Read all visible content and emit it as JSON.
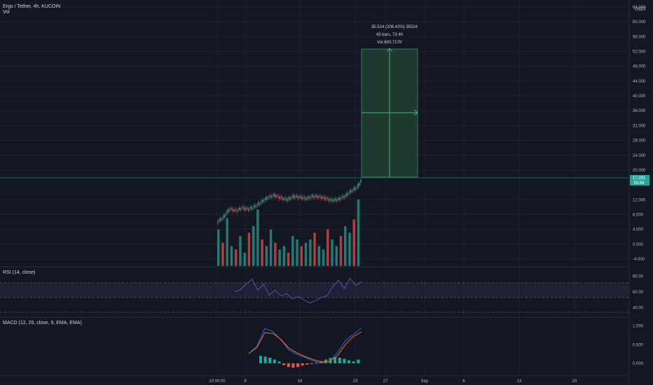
{
  "header": {
    "symbol_line": "Ergo / Tether, 4h, KUCOIN",
    "vol_label": "Vol",
    "rsi_label": "RSI (14, close)",
    "macd_label": "MACD (12, 26, close, 9, EMA, EMA)"
  },
  "price_axis": {
    "currency": "USDT",
    "ticks": [
      "64.000",
      "60.000",
      "56.000",
      "52.000",
      "48.000",
      "44.000",
      "40.000",
      "36.000",
      "32.000",
      "28.000",
      "24.000",
      "20.000",
      "12.000",
      "8.000",
      "4.000",
      "0.000",
      "-4.000"
    ],
    "last_price": "17.291",
    "countdown": "55:56"
  },
  "time_axis": {
    "ticks": [
      "10:00:00",
      "9",
      "16",
      "23",
      "27",
      "Sep",
      "6",
      "13",
      "20"
    ]
  },
  "rsi_axis": {
    "ticks": [
      "80.00",
      "60.00",
      "40.00"
    ]
  },
  "macd_axis": {
    "ticks": [
      "1.000",
      "0.500",
      "0.000"
    ]
  },
  "measure_tool": {
    "line1": "35.524 (206.42%) 35524",
    "line2": "43 bars, 7d 4h",
    "line3": "Vol 883.717K"
  },
  "colors": {
    "background": "#131722",
    "up": "#26a69a",
    "down": "#ef5350",
    "rsi_line": "#7e57c2",
    "macd_line": "#2962ff",
    "signal_line": "#ff6d00",
    "measure_fill": "#1e3a2f",
    "measure_stroke": "#4caf7a",
    "last_price_badge": "#26a69a"
  },
  "chart_data": [
    {
      "type": "candlestick",
      "title": "Ergo / Tether, 4h, KUCOIN",
      "ylim": [
        -4,
        64
      ],
      "close_start": 5.9,
      "close_end": 17.291,
      "note_values": "price path approximated from candles",
      "points": [
        [
          0,
          5.9
        ],
        [
          5,
          7.2
        ],
        [
          10,
          9.6
        ],
        [
          15,
          9.0
        ],
        [
          20,
          9.8
        ],
        [
          25,
          9.4
        ],
        [
          30,
          10.2
        ],
        [
          35,
          11.4
        ],
        [
          40,
          12.6
        ],
        [
          45,
          13.2
        ],
        [
          50,
          12.5
        ],
        [
          55,
          12.0
        ],
        [
          60,
          12.9
        ],
        [
          65,
          12.7
        ],
        [
          70,
          12.3
        ],
        [
          75,
          12.9
        ],
        [
          80,
          12.8
        ],
        [
          85,
          12.4
        ],
        [
          90,
          11.8
        ],
        [
          95,
          12.1
        ],
        [
          100,
          12.9
        ],
        [
          105,
          14.3
        ],
        [
          110,
          15.4
        ],
        [
          113,
          17.291
        ]
      ]
    },
    {
      "type": "bar",
      "title": "Vol",
      "note": "relative volume (0-1)",
      "values": [
        0.55,
        0.35,
        0.72,
        0.3,
        0.25,
        0.45,
        0.2,
        0.5,
        0.6,
        0.85,
        0.4,
        0.3,
        0.55,
        0.35,
        0.25,
        0.3,
        0.2,
        0.45,
        0.4,
        0.3,
        0.35,
        0.4,
        0.5,
        0.3,
        0.25,
        0.55,
        0.4,
        0.3,
        0.45,
        0.6,
        0.5,
        0.7,
        1.0
      ]
    },
    {
      "type": "line",
      "title": "RSI (14, close)",
      "ylim": [
        30,
        90
      ],
      "bands": [
        30,
        70
      ],
      "values": [
        60,
        63,
        70,
        76,
        62,
        70,
        56,
        62,
        55,
        58,
        51,
        54,
        50,
        46,
        49,
        53,
        55,
        67,
        75,
        64,
        77,
        68,
        73
      ]
    },
    {
      "type": "line",
      "title": "MACD (12, 26, close, 9, EMA, EMA)",
      "ylim": [
        -0.3,
        1.2
      ],
      "series": [
        {
          "values": [
            0.26,
            0.45,
            0.93,
            0.85,
            0.63,
            0.35,
            0.24,
            0.16,
            0.07,
            0.01,
            0.05,
            0.28,
            0.6,
            0.78,
            0.94
          ]
        },
        {
          "values": [
            0.26,
            0.42,
            0.82,
            0.8,
            0.64,
            0.4,
            0.28,
            0.18,
            0.1,
            0.04,
            0.05,
            0.2,
            0.5,
            0.72,
            0.84
          ]
        }
      ],
      "histogram": [
        0.2,
        0.18,
        0.15,
        0.1,
        0.05,
        -0.05,
        -0.1,
        -0.12,
        -0.1,
        -0.06,
        -0.04,
        -0.02,
        0.02,
        0.06,
        0.1,
        0.14,
        0.16,
        0.15,
        0.12,
        0.08,
        0.05,
        0.1
      ]
    }
  ]
}
